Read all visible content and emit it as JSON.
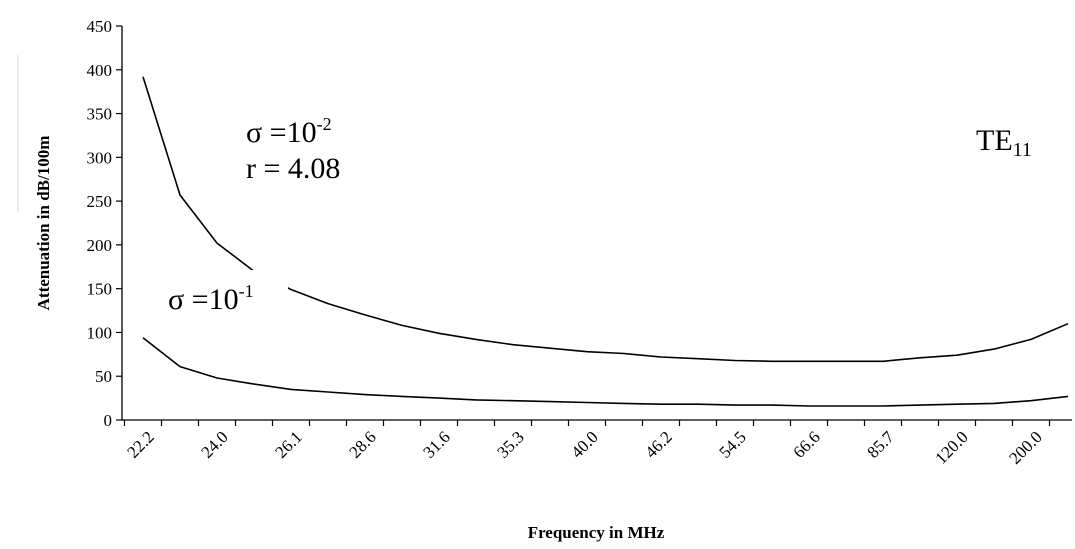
{
  "chart_data": {
    "type": "line",
    "xlabel": "Frequency in MHz",
    "ylabel": "Attenuation in dB/100m",
    "ylim": [
      0,
      450
    ],
    "yticks": [
      0,
      50,
      100,
      150,
      200,
      250,
      300,
      350,
      400,
      450
    ],
    "x": [
      22.2,
      23.1,
      24.0,
      25.0,
      26.1,
      27.3,
      28.6,
      30.0,
      31.6,
      33.3,
      35.3,
      37.5,
      40.0,
      42.9,
      46.2,
      50.0,
      54.5,
      60.0,
      66.6,
      75.0,
      85.7,
      100.0,
      120.0,
      150.0,
      200.0,
      300.0
    ],
    "x_tick_labels": [
      "22.2",
      "24.0",
      "26.1",
      "28.6",
      "31.6",
      "35.3",
      "40.0",
      "46.2",
      "54.5",
      "66.6",
      "85.7",
      "120.0",
      "200.0"
    ],
    "series": [
      {
        "name": "σ =10^-2",
        "values": [
          392,
          257,
          202,
          170,
          149,
          133,
          120,
          108,
          99,
          92,
          86,
          82,
          78,
          76,
          72,
          70,
          68,
          67,
          67,
          67,
          67,
          71,
          74,
          81,
          92,
          110
        ]
      },
      {
        "name": "σ =10^-1",
        "values": [
          94,
          61,
          48,
          41,
          35,
          32,
          29,
          27,
          25,
          23,
          22,
          21,
          20,
          19,
          18,
          18,
          17,
          17,
          16,
          16,
          16,
          17,
          18,
          19,
          22,
          27
        ]
      }
    ],
    "grid": false,
    "legend": "none"
  },
  "annotations": {
    "sigma_high_base": "σ =10",
    "sigma_high_exp": "-2",
    "r_value": "r = 4.08",
    "sigma_low_base": "σ =10",
    "sigma_low_exp": "-1",
    "mode_base": "TE",
    "mode_sub": "11"
  }
}
